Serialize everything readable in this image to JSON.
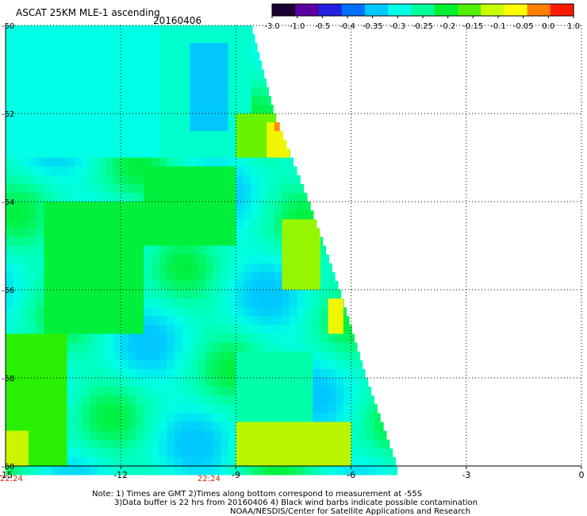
{
  "header": {
    "title": "ASCAT 25KM MLE-1 ascending",
    "date": "20160406"
  },
  "colorbar": {
    "labels": [
      "-3.0",
      "-1.0",
      "-0.5",
      "-0.4",
      "-0.35",
      "-0.3",
      "-0.25",
      "-0.2",
      "-0.15",
      "-0.1",
      "-0.05",
      "0.0",
      "1.0"
    ],
    "colors": [
      "#1a0030",
      "#5a00a0",
      "#2020e0",
      "#0070ff",
      "#00c8ff",
      "#00ffe6",
      "#00ff9a",
      "#00f030",
      "#50f000",
      "#c8ff00",
      "#ffff00",
      "#ff8000",
      "#ff1a00"
    ]
  },
  "time_labels": {
    "left": "22:24",
    "mid": "22:24"
  },
  "notes": {
    "line1": "Note: 1) Times are GMT 2)Times along bottom correspond to measurement at -55S",
    "line2": "3)Data buffer is 22 hrs from 20160406 4) Black wind barbs indicate possible contamination",
    "line3": "NOAA/NESDIS/Center for Satellite Applications and Research"
  },
  "chart_data": {
    "type": "heatmap",
    "title": "ASCAT 25KM MLE-1 ascending",
    "xlabel": "",
    "ylabel": "",
    "x_ticks": [
      "-15",
      "-12",
      "-9",
      "-6",
      "-3",
      "0"
    ],
    "y_ticks": [
      "-50",
      "-52",
      "-54",
      "-56",
      "-58",
      "-60"
    ],
    "xlim": [
      -15,
      0
    ],
    "ylim": [
      -60,
      -50
    ],
    "grid": true,
    "colorbar_range": [
      -3.0,
      1.0
    ],
    "swath_east_edge": [
      {
        "lat": -50.0,
        "lon": -8.6
      },
      {
        "lat": -52.0,
        "lon": -8.0
      },
      {
        "lat": -54.0,
        "lon": -7.1
      },
      {
        "lat": -56.0,
        "lon": -6.3
      },
      {
        "lat": -58.0,
        "lon": -5.6
      },
      {
        "lat": -60.0,
        "lon": -4.8
      }
    ],
    "regions": [
      {
        "lon": [
          -15,
          -11
        ],
        "lat": [
          -53,
          -50
        ],
        "value": -0.3
      },
      {
        "lon": [
          -11,
          -8.6
        ],
        "lat": [
          -53,
          -50
        ],
        "value": -0.28
      },
      {
        "lon": [
          -10.2,
          -9.3
        ],
        "lat": [
          -52.5,
          -50.5
        ],
        "value": -0.35
      },
      {
        "lon": [
          -14,
          -11.5
        ],
        "lat": [
          -57,
          -54
        ],
        "value": -0.2
      },
      {
        "lon": [
          -11.5,
          -9
        ],
        "lat": [
          -55,
          -53.2
        ],
        "value": -0.2
      },
      {
        "lon": [
          -9,
          -7.2
        ],
        "lat": [
          -53,
          -52
        ],
        "value": -0.12
      },
      {
        "lon": [
          -8.2,
          -7.6
        ],
        "lat": [
          -53,
          -52.2
        ],
        "value": -0.05
      },
      {
        "lon": [
          -8.0,
          -7.8
        ],
        "lat": [
          -52.4,
          -52.2
        ],
        "value": 0.0
      },
      {
        "lon": [
          -7.8,
          -6.8
        ],
        "lat": [
          -56,
          -54.5
        ],
        "value": -0.1
      },
      {
        "lon": [
          -6.6,
          -6.2
        ],
        "lat": [
          -57,
          -56.2
        ],
        "value": -0.05
      },
      {
        "lon": [
          -9,
          -7
        ],
        "lat": [
          -59,
          -57.5
        ],
        "value": -0.25
      },
      {
        "lon": [
          -9,
          -6
        ],
        "lat": [
          -60,
          -59
        ],
        "value": -0.08
      },
      {
        "lon": [
          -15,
          -13.5
        ],
        "lat": [
          -60,
          -57
        ],
        "value": -0.15
      },
      {
        "lon": [
          -15,
          -14.5
        ],
        "lat": [
          -60,
          -59.2
        ],
        "value": -0.07
      }
    ]
  }
}
